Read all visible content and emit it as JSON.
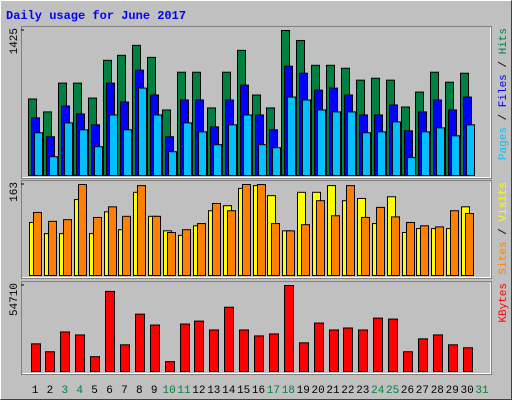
{
  "chart_data": {
    "type": "bar",
    "title": "Daily usage for June 2017",
    "categories": [
      1,
      2,
      3,
      4,
      5,
      6,
      7,
      8,
      9,
      10,
      11,
      12,
      13,
      14,
      15,
      16,
      17,
      18,
      19,
      20,
      21,
      22,
      23,
      24,
      25,
      26,
      27,
      28,
      29,
      30,
      31
    ],
    "category_colors": [
      "#000000",
      "#000000",
      "#008040",
      "#008040",
      "#000000",
      "#000000",
      "#000000",
      "#000000",
      "#000000",
      "#008040",
      "#008040",
      "#000000",
      "#000000",
      "#000000",
      "#000000",
      "#000000",
      "#008040",
      "#008040",
      "#000000",
      "#000000",
      "#000000",
      "#000000",
      "#000000",
      "#008040",
      "#008040",
      "#000000",
      "#000000",
      "#000000",
      "#000000",
      "#000000",
      "#008040"
    ],
    "label_separator": " / ",
    "panels": [
      {
        "ylim": [
          0,
          1425
        ],
        "yticks": [
          1425
        ],
        "series": [
          {
            "name": "Hits",
            "color": "#008040",
            "values": [
              752,
              625,
              908,
              908,
              761,
              1132,
              1181,
              1279,
              1161,
              644,
              1015,
              1015,
              664,
              1015,
              1230,
              791,
              664,
              1425,
              1327,
              1083,
              1083,
              1054,
              937,
              956,
              937,
              673,
              820,
              1015,
              917,
              1005,
              null
            ]
          },
          {
            "name": "Files",
            "color": "#0000ff",
            "values": [
              566,
              381,
              683,
              605,
              498,
              908,
              722,
              1035,
              791,
              381,
              742,
              742,
              478,
              742,
              888,
              595,
              449,
              1074,
              1005,
              839,
              859,
              791,
              595,
              595,
              693,
              439,
              625,
              742,
              644,
              771,
              null
            ]
          },
          {
            "name": "Pages",
            "color": "#00c0ff",
            "values": [
              420,
              185,
              517,
              449,
              283,
              595,
              449,
              859,
              595,
              234,
              517,
              429,
              303,
              498,
              595,
              303,
              273,
              771,
              742,
              644,
              625,
              625,
              420,
              429,
              527,
              176,
              429,
              468,
              390,
              498,
              null
            ]
          }
        ]
      },
      {
        "ylim": [
          0,
          163
        ],
        "yticks": [
          163
        ],
        "series": [
          {
            "name": "Visits",
            "color": "#ffff00",
            "values": [
              95,
              75,
              75,
              136,
              75,
              114,
              82,
              149,
              106,
              80,
              72,
              89,
              116,
              125,
              156,
              161,
              143,
              80,
              149,
              149,
              161,
              134,
              138,
              93,
              141,
              77,
              84,
              84,
              84,
              123,
              null
            ]
          },
          {
            "name": "Sites",
            "color": "#ff8000",
            "values": [
              113,
              97,
              100,
              163,
              104,
              123,
              106,
              161,
              106,
              77,
              82,
              93,
              129,
              116,
              163,
              163,
              93,
              80,
              91,
              134,
              107,
              161,
              104,
              122,
              105,
              95,
              89,
              87,
              116,
              111,
              null
            ]
          }
        ]
      },
      {
        "ylim": [
          0,
          54710
        ],
        "yticks": [
          54710
        ],
        "series": [
          {
            "name": "KBytes",
            "color": "#ff0000",
            "values": [
              17612,
              12580,
              25160,
              23273,
              9435,
              50949,
              16983,
              36482,
              29563,
              6290,
              30192,
              32079,
              26418,
              40885,
              26418,
              22644,
              23902,
              54710,
              18241,
              30821,
              26418,
              27676,
              26418,
              33966,
              33337,
              12580,
              20757,
              23273,
              16983,
              15096,
              null
            ]
          }
        ]
      }
    ]
  }
}
